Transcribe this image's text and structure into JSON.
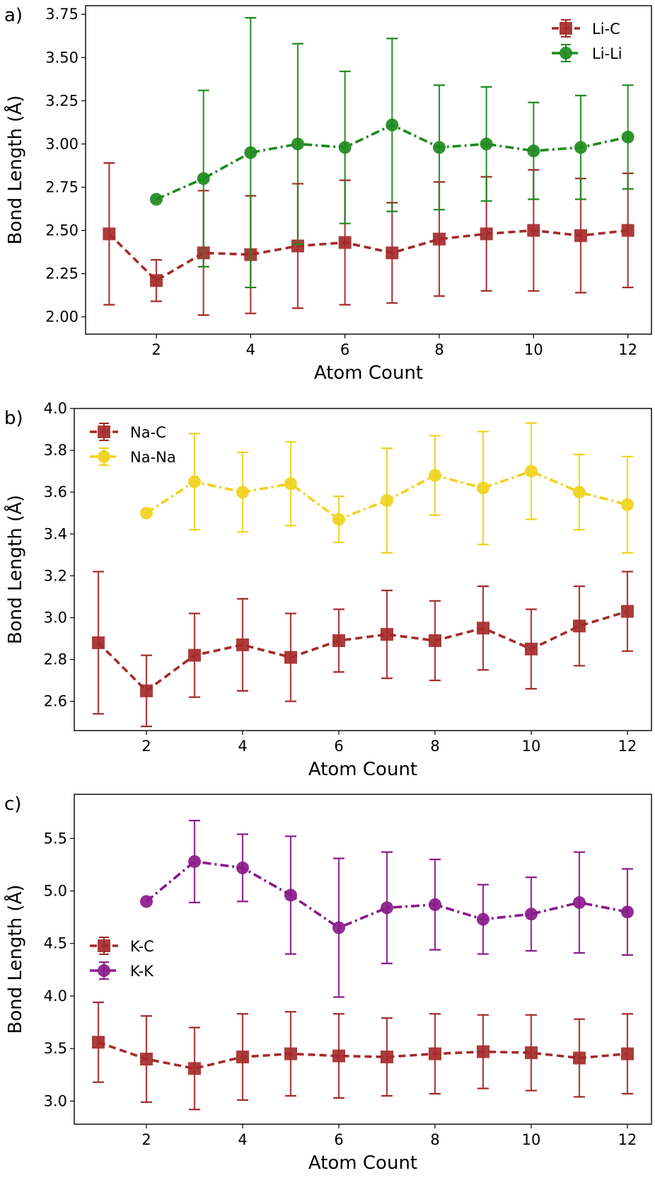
{
  "chart_data": [
    {
      "type": "line",
      "panel_label": "a)",
      "xlabel": "Atom Count",
      "ylabel": "Bond Length (Å)",
      "xlim": [
        0.5,
        12.5
      ],
      "ylim": [
        1.9,
        3.8
      ],
      "xticks": [
        2,
        4,
        6,
        8,
        10,
        12
      ],
      "yticks": [
        2.0,
        2.25,
        2.5,
        2.75,
        3.0,
        3.25,
        3.5,
        3.75
      ],
      "ytick_format": 2,
      "grid": false,
      "legend_position": "top-right",
      "series": [
        {
          "name": "Li-C",
          "color": "#a52a2a",
          "marker": "square",
          "linestyle": "dashed",
          "x": [
            1,
            2,
            3,
            4,
            5,
            6,
            7,
            8,
            9,
            10,
            11,
            12
          ],
          "y": [
            2.48,
            2.21,
            2.37,
            2.36,
            2.41,
            2.43,
            2.37,
            2.45,
            2.48,
            2.5,
            2.47,
            2.5
          ],
          "err": [
            0.41,
            0.12,
            0.36,
            0.34,
            0.36,
            0.36,
            0.29,
            0.33,
            0.33,
            0.35,
            0.33,
            0.33
          ]
        },
        {
          "name": "Li-Li",
          "color": "#1e8a1e",
          "marker": "circle",
          "linestyle": "dashdot",
          "x": [
            2,
            3,
            4,
            5,
            6,
            7,
            8,
            9,
            10,
            11,
            12
          ],
          "y": [
            2.68,
            2.8,
            2.95,
            3.0,
            2.98,
            3.11,
            2.98,
            3.0,
            2.96,
            2.98,
            3.04
          ],
          "err": [
            0.0,
            0.51,
            0.78,
            0.58,
            0.44,
            0.5,
            0.36,
            0.33,
            0.28,
            0.3,
            0.3
          ]
        }
      ]
    },
    {
      "type": "line",
      "panel_label": "b)",
      "xlabel": "Atom Count",
      "ylabel": "Bond Length (Å)",
      "xlim": [
        0.5,
        12.5
      ],
      "ylim": [
        2.46,
        4.0
      ],
      "xticks": [
        2,
        4,
        6,
        8,
        10,
        12
      ],
      "yticks": [
        2.6,
        2.8,
        3.0,
        3.2,
        3.4,
        3.6,
        3.8,
        4.0
      ],
      "ytick_format": 1,
      "grid": false,
      "legend_position": "top-left",
      "series": [
        {
          "name": "Na-C",
          "color": "#a52a2a",
          "marker": "square",
          "linestyle": "dashed",
          "x": [
            1,
            2,
            3,
            4,
            5,
            6,
            7,
            8,
            9,
            10,
            11,
            12
          ],
          "y": [
            2.88,
            2.65,
            2.82,
            2.87,
            2.81,
            2.89,
            2.92,
            2.89,
            2.95,
            2.85,
            2.96,
            3.03
          ],
          "err": [
            0.34,
            0.17,
            0.2,
            0.22,
            0.21,
            0.15,
            0.21,
            0.19,
            0.2,
            0.19,
            0.19,
            0.19
          ]
        },
        {
          "name": "Na-Na",
          "color": "#f0d21e",
          "marker": "circle",
          "linestyle": "dashdot",
          "x": [
            2,
            3,
            4,
            5,
            6,
            7,
            8,
            9,
            10,
            11,
            12
          ],
          "y": [
            3.5,
            3.65,
            3.6,
            3.64,
            3.47,
            3.56,
            3.68,
            3.62,
            3.7,
            3.6,
            3.54
          ],
          "err": [
            0.0,
            0.23,
            0.19,
            0.2,
            0.11,
            0.25,
            0.19,
            0.27,
            0.23,
            0.18,
            0.23
          ]
        }
      ]
    },
    {
      "type": "line",
      "panel_label": "c)",
      "xlabel": "Atom Count",
      "ylabel": "Bond Length (Å)",
      "xlim": [
        0.5,
        12.5
      ],
      "ylim": [
        2.78,
        5.92
      ],
      "xticks": [
        2,
        4,
        6,
        8,
        10,
        12
      ],
      "yticks": [
        3.0,
        3.5,
        4.0,
        4.5,
        5.0,
        5.5
      ],
      "ytick_format": 1,
      "grid": false,
      "legend_position": "center-left",
      "series": [
        {
          "name": "K-C",
          "color": "#a52a2a",
          "marker": "square",
          "linestyle": "dashed",
          "x": [
            1,
            2,
            3,
            4,
            5,
            6,
            7,
            8,
            9,
            10,
            11,
            12
          ],
          "y": [
            3.56,
            3.4,
            3.31,
            3.42,
            3.45,
            3.43,
            3.42,
            3.45,
            3.47,
            3.46,
            3.41,
            3.45
          ],
          "err": [
            0.38,
            0.41,
            0.39,
            0.41,
            0.4,
            0.4,
            0.37,
            0.38,
            0.35,
            0.36,
            0.37,
            0.38
          ]
        },
        {
          "name": "K-K",
          "color": "#8a1a8a",
          "marker": "circle",
          "linestyle": "dashdot",
          "x": [
            2,
            3,
            4,
            5,
            6,
            7,
            8,
            9,
            10,
            11,
            12
          ],
          "y": [
            4.9,
            5.28,
            5.22,
            4.96,
            4.65,
            4.84,
            4.87,
            4.73,
            4.78,
            4.89,
            4.8
          ],
          "err": [
            0.0,
            0.39,
            0.32,
            0.56,
            0.66,
            0.53,
            0.43,
            0.33,
            0.35,
            0.48,
            0.41
          ]
        }
      ]
    }
  ]
}
